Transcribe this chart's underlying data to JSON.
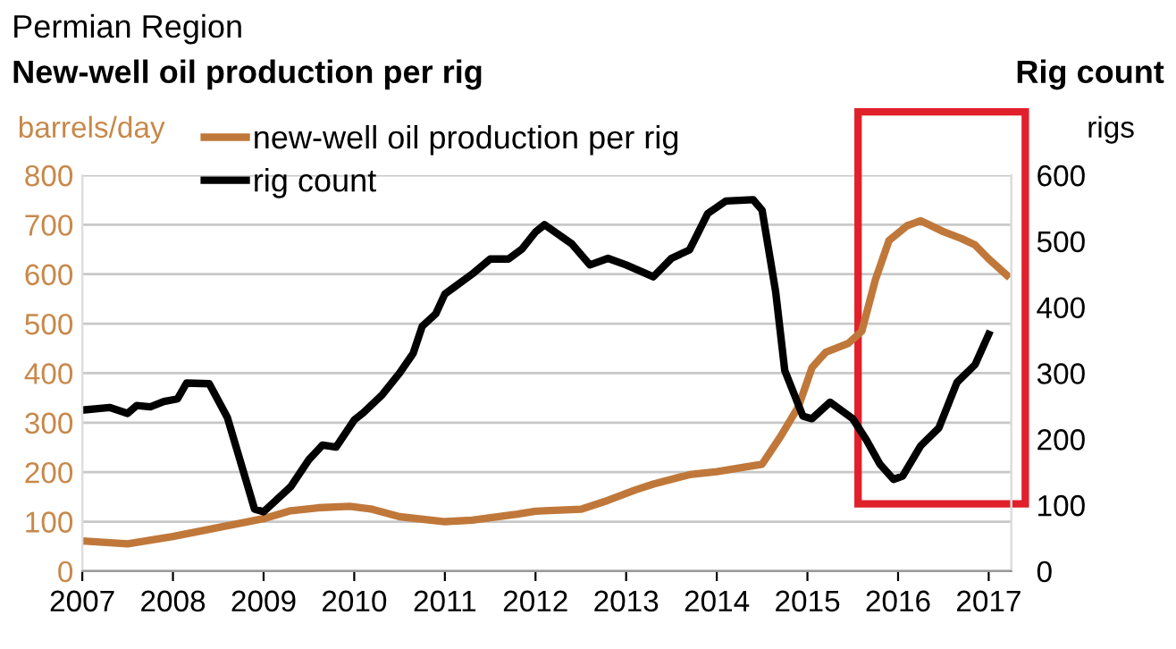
{
  "chart_data": {
    "type": "line",
    "title": "New-well oil production per rig",
    "subtitle": "Permian Region",
    "ylabel": "barrels/day",
    "y2label": "rigs",
    "annotations": [
      "Rig count"
    ],
    "xlim": [
      2007,
      2017.25
    ],
    "xticks": [
      2007,
      2008,
      2009,
      2010,
      2011,
      2012,
      2013,
      2014,
      2015,
      2016,
      2017
    ],
    "ylim": [
      0,
      800
    ],
    "yticks": [
      0,
      100,
      200,
      300,
      400,
      500,
      600,
      700,
      800
    ],
    "y2lim": [
      0,
      600
    ],
    "y2ticks": [
      0,
      100,
      200,
      300,
      400,
      500,
      600
    ],
    "grid": "y",
    "legend": "top left",
    "marker": "none",
    "line_style": "solid",
    "series": [
      {
        "name": "new-well oil production per rig",
        "color": "#c0783a",
        "x": [
          2007.0,
          2007.5,
          2008.0,
          2008.5,
          2009.0,
          2009.3,
          2009.6,
          2009.95,
          2010.2,
          2010.5,
          2011.0,
          2011.3,
          2011.8,
          2012.0,
          2012.1,
          2012.5,
          2012.8,
          2013.1,
          2013.3,
          2013.7,
          2014.0,
          2014.3,
          2014.5,
          2014.7,
          2014.9,
          2015.05,
          2015.2,
          2015.45,
          2015.6,
          2015.75,
          2015.9,
          2016.1,
          2016.25,
          2016.5,
          2016.7,
          2016.85,
          2017.0,
          2017.2
        ],
        "values": [
          61,
          55,
          70,
          88,
          106,
          122,
          128,
          131,
          125,
          110,
          100,
          103,
          115,
          121,
          122,
          125,
          143,
          164,
          176,
          195,
          201,
          210,
          216,
          271,
          332,
          411,
          442,
          460,
          485,
          589,
          668,
          698,
          708,
          686,
          672,
          659,
          631,
          598
        ]
      },
      {
        "name": "rig count",
        "color": "#000000",
        "axis": "y2",
        "x": [
          2007.0,
          2007.3,
          2007.5,
          2007.6,
          2007.75,
          2007.9,
          2008.05,
          2008.15,
          2008.4,
          2008.6,
          2008.9,
          2009.0,
          2009.3,
          2009.5,
          2009.65,
          2009.8,
          2010.0,
          2010.1,
          2010.3,
          2010.5,
          2010.65,
          2010.75,
          2010.9,
          2011.0,
          2011.3,
          2011.5,
          2011.7,
          2011.85,
          2012.0,
          2012.1,
          2012.4,
          2012.6,
          2012.8,
          2013.0,
          2013.3,
          2013.5,
          2013.7,
          2013.9,
          2014.1,
          2014.4,
          2014.5,
          2014.65,
          2014.75,
          2014.95,
          2015.05,
          2015.25,
          2015.5,
          2015.65,
          2015.8,
          2015.95,
          2016.05,
          2016.25,
          2016.45,
          2016.65,
          2016.85,
          2017.0
        ],
        "values": [
          244,
          248,
          239,
          251,
          249,
          257,
          261,
          285,
          284,
          233,
          94,
          90,
          128,
          169,
          191,
          188,
          229,
          240,
          266,
          300,
          330,
          371,
          390,
          420,
          450,
          473,
          473,
          488,
          514,
          525,
          496,
          464,
          474,
          464,
          446,
          474,
          487,
          542,
          561,
          563,
          547,
          423,
          304,
          235,
          231,
          256,
          231,
          199,
          162,
          139,
          144,
          190,
          217,
          286,
          313,
          359
        ]
      }
    ]
  }
}
